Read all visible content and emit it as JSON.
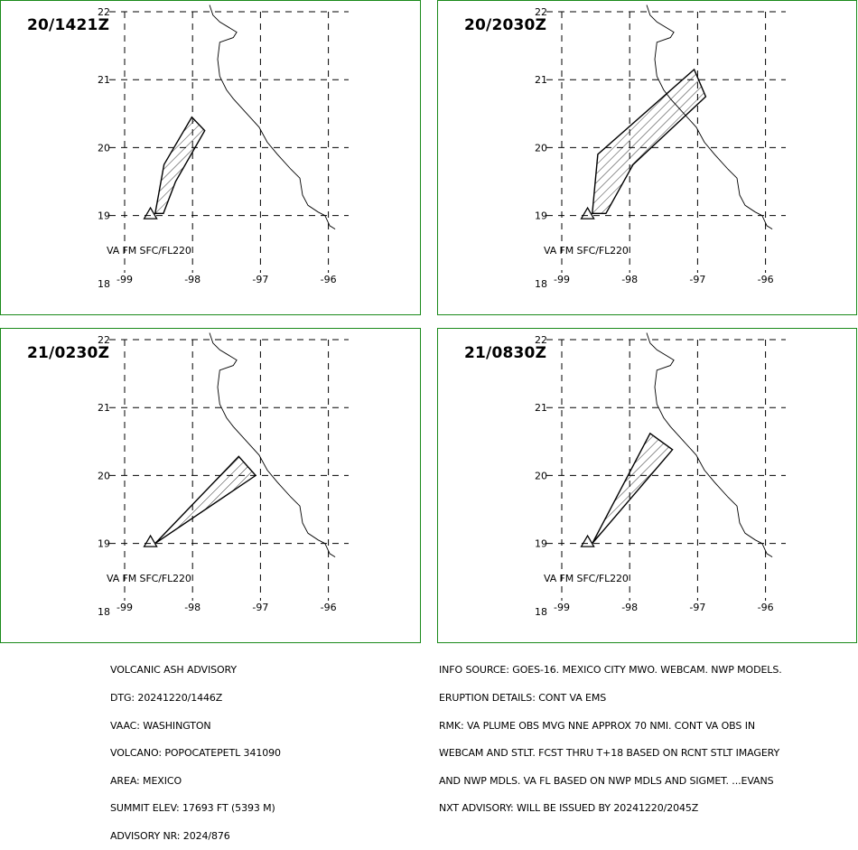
{
  "panels": [
    {
      "label": "20/1421Z",
      "height_label": "VA FM SFC/FL220",
      "plume": [
        [
          -98.55,
          19.03
        ],
        [
          -98.42,
          19.75
        ],
        [
          -98.01,
          20.45
        ],
        [
          -97.82,
          20.25
        ],
        [
          -98.25,
          19.5
        ],
        [
          -98.43,
          19.03
        ]
      ]
    },
    {
      "label": "20/2030Z",
      "height_label": "VA FM SFC/FL220",
      "plume": [
        [
          -98.55,
          19.03
        ],
        [
          -98.47,
          19.9
        ],
        [
          -97.05,
          21.15
        ],
        [
          -96.88,
          20.75
        ],
        [
          -97.95,
          19.75
        ],
        [
          -98.35,
          19.03
        ]
      ]
    },
    {
      "label": "21/0230Z",
      "height_label": "VA FM SFC/FL220",
      "plume": [
        [
          -98.55,
          19.0
        ],
        [
          -97.32,
          20.28
        ],
        [
          -97.07,
          20.0
        ]
      ]
    },
    {
      "label": "21/0830Z",
      "height_label": "VA FM SFC/FL220",
      "plume": [
        [
          -98.55,
          19.0
        ],
        [
          -97.7,
          20.62
        ],
        [
          -97.37,
          20.38
        ]
      ]
    }
  ],
  "axes": {
    "lon_ticks": [
      -99,
      -98,
      -97,
      -96
    ],
    "lat_ticks": [
      22,
      21,
      20,
      19,
      18
    ]
  },
  "volcano": {
    "lon": -98.62,
    "lat": 19.02
  },
  "coastline": [
    [
      -97.75,
      22.1
    ],
    [
      -97.7,
      21.95
    ],
    [
      -97.6,
      21.85
    ],
    [
      -97.35,
      21.7
    ],
    [
      -97.4,
      21.62
    ],
    [
      -97.6,
      21.55
    ],
    [
      -97.63,
      21.3
    ],
    [
      -97.6,
      21.05
    ],
    [
      -97.5,
      20.85
    ],
    [
      -97.4,
      20.72
    ],
    [
      -97.22,
      20.52
    ],
    [
      -97.02,
      20.3
    ],
    [
      -96.9,
      20.08
    ],
    [
      -96.75,
      19.9
    ],
    [
      -96.55,
      19.68
    ],
    [
      -96.42,
      19.55
    ],
    [
      -96.38,
      19.3
    ],
    [
      -96.3,
      19.15
    ],
    [
      -96.15,
      19.05
    ],
    [
      -96.05,
      19.0
    ],
    [
      -95.98,
      18.85
    ],
    [
      -95.9,
      18.8
    ]
  ],
  "advisory_left": [
    "VOLCANIC ASH ADVISORY",
    "DTG: 20241220/1446Z",
    "VAAC: WASHINGTON",
    "VOLCANO: POPOCATEPETL 341090",
    "AREA: MEXICO",
    "SUMMIT ELEV: 17693 FT (5393 M)",
    "ADVISORY NR: 2024/876"
  ],
  "advisory_right": [
    "INFO SOURCE: GOES-16. MEXICO CITY MWO. WEBCAM. NWP MODELS.",
    "ERUPTION DETAILS: CONT VA EMS",
    "RMK: VA PLUME OBS MVG NNE APPROX 70 NMI. CONT VA OBS IN",
    "WEBCAM AND STLT. FCST THRU T+18 BASED ON RCNT STLT IMAGERY",
    "AND NWP MDLS. VA FL BASED ON NWP MDLS AND SIGMET. ...EVANS",
    "NXT ADVISORY: WILL BE ISSUED BY 20241220/2045Z"
  ],
  "colors": {
    "panel_border": "#1a8a1a",
    "ink": "#000000",
    "background": "#ffffff"
  }
}
